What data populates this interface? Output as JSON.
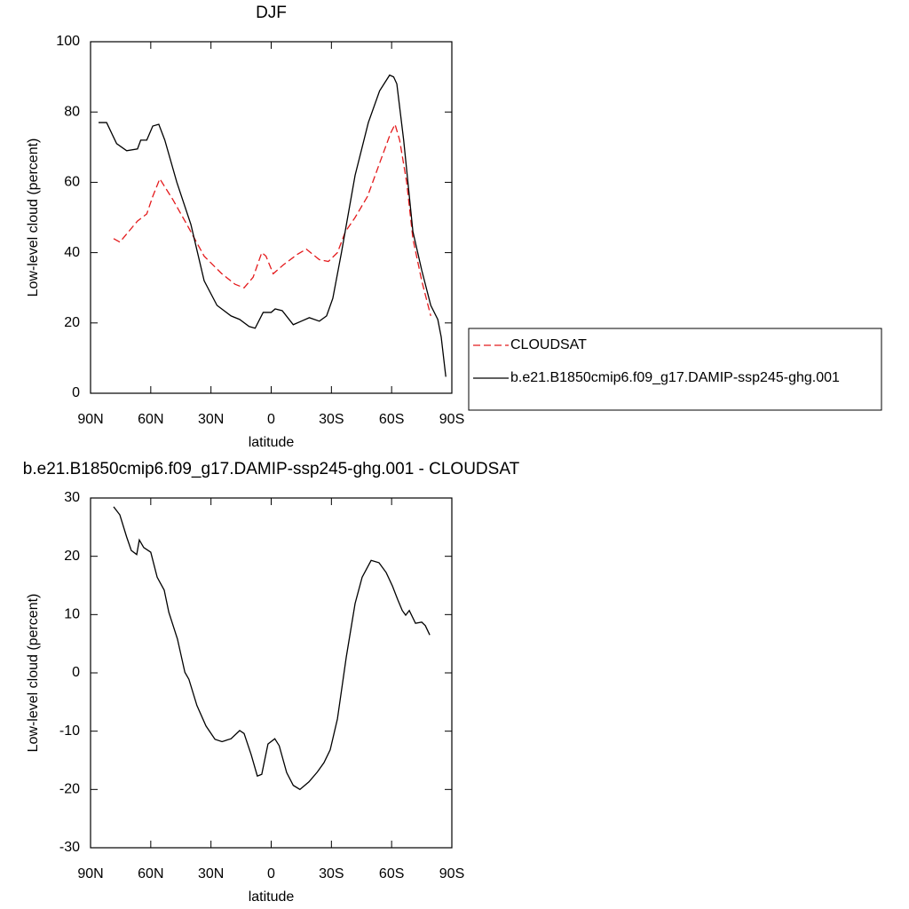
{
  "chart_data": [
    {
      "type": "line",
      "title": "DJF",
      "xlabel": "latitude",
      "ylabel": "Low-level cloud (percent)",
      "xlim": [
        90,
        -90
      ],
      "ylim": [
        0,
        100
      ],
      "xticks": [
        {
          "value": 90,
          "label": "90N"
        },
        {
          "value": 60,
          "label": "60N"
        },
        {
          "value": 30,
          "label": "30N"
        },
        0,
        {
          "value": -30,
          "label": "30S"
        },
        {
          "value": -60,
          "label": "60S"
        },
        {
          "value": -90,
          "label": "90S"
        }
      ],
      "yticks": [
        0,
        20,
        40,
        60,
        80,
        100
      ],
      "legend": "right",
      "series": [
        {
          "name": "CLOUDSAT",
          "color": "#e41a1c",
          "dashed": true,
          "x": [
            78.5,
            75.4,
            71,
            66.6,
            62,
            59,
            55.5,
            48.9,
            42,
            33.4,
            24.6,
            18,
            13.5,
            9,
            4.7,
            2.6,
            -1,
            -6,
            -13,
            -17.5,
            -24,
            -28.5,
            -33,
            -37,
            -41.8,
            -48,
            -55,
            -59.5,
            -61.7,
            -64,
            -67.5,
            -70.6,
            -75,
            -79.5
          ],
          "values": [
            44,
            43,
            46,
            49,
            51,
            56,
            61,
            55,
            48,
            39,
            34,
            31,
            30,
            33,
            40,
            39,
            34,
            36.5,
            39.5,
            41,
            38,
            37.5,
            40,
            46,
            50,
            56,
            67,
            74,
            76.5,
            72,
            60,
            44,
            32,
            22
          ]
        },
        {
          "name": "b.e21.B1850cmip6.f09_g17.DAMIP-ssp245-ghg.001",
          "color": "#000000",
          "dashed": false,
          "x": [
            86,
            82,
            77,
            72,
            66.6,
            65,
            62,
            59,
            56,
            53,
            47,
            40,
            33.4,
            27,
            20,
            15.7,
            11,
            8,
            4,
            0,
            -2,
            -5.5,
            -11,
            -15,
            -19,
            -24,
            -27.6,
            -30.7,
            -35,
            -41.8,
            -48.4,
            -54,
            -59,
            -61,
            -62.6,
            -66,
            -70.6,
            -75,
            -79.5,
            -83,
            -84.7,
            -87
          ],
          "values": [
            77,
            77,
            71,
            69,
            69.5,
            72,
            72,
            76,
            76.5,
            72,
            60,
            48,
            32,
            25,
            22,
            21,
            19,
            18.5,
            23,
            23,
            24,
            23.5,
            19.5,
            20.5,
            21.5,
            20.5,
            22,
            27,
            40,
            62,
            77,
            86,
            90.5,
            90,
            88,
            72,
            46,
            35,
            25,
            21,
            16,
            4.7
          ]
        }
      ]
    },
    {
      "type": "line",
      "title": "b.e21.B1850cmip6.f09_g17.DAMIP-ssp245-ghg.001 - CLOUDSAT",
      "xlabel": "latitude",
      "ylabel": "Low-level cloud (percent)",
      "xlim": [
        90,
        -90
      ],
      "ylim": [
        -30,
        30
      ],
      "xticks": [
        {
          "value": 90,
          "label": "90N"
        },
        {
          "value": 60,
          "label": "60N"
        },
        {
          "value": 30,
          "label": "30N"
        },
        0,
        {
          "value": -30,
          "label": "30S"
        },
        {
          "value": -60,
          "label": "60S"
        },
        {
          "value": -90,
          "label": "90S"
        }
      ],
      "yticks": [
        -30,
        -20,
        -10,
        0,
        10,
        20,
        30
      ],
      "color": "#000000",
      "x": [
        78.5,
        75.4,
        72,
        69.7,
        67,
        65.7,
        63.5,
        60,
        56.8,
        53.3,
        51,
        46.7,
        43,
        41,
        37,
        32.5,
        28,
        24.5,
        20,
        15.7,
        13.5,
        10,
        6.9,
        4.7,
        1.6,
        -1.8,
        -4,
        -7.7,
        -11,
        -14.3,
        -18.8,
        -23,
        -26.3,
        -29.4,
        -33,
        -37.4,
        -41.8,
        -45.3,
        -49.8,
        -53.7,
        -57.3,
        -60.4,
        -63,
        -65.3,
        -67,
        -68.8,
        -71.9,
        -75,
        -76.8,
        -79
      ],
      "values": [
        28.5,
        27.1,
        23.3,
        21,
        20.3,
        22.8,
        21.5,
        20.7,
        16.4,
        14.2,
        10.4,
        5.8,
        0.1,
        -1.1,
        -5.6,
        -9.1,
        -11.4,
        -11.8,
        -11.3,
        -9.9,
        -10.4,
        -14,
        -17.7,
        -17.4,
        -12.2,
        -11.3,
        -12.5,
        -17.1,
        -19.3,
        -20,
        -18.7,
        -17,
        -15.4,
        -13.2,
        -7.9,
        2.7,
        11.9,
        16.4,
        19.3,
        18.9,
        17.2,
        14.9,
        12.6,
        10.7,
        9.9,
        10.7,
        8.5,
        8.7,
        8.1,
        6.5
      ]
    }
  ]
}
